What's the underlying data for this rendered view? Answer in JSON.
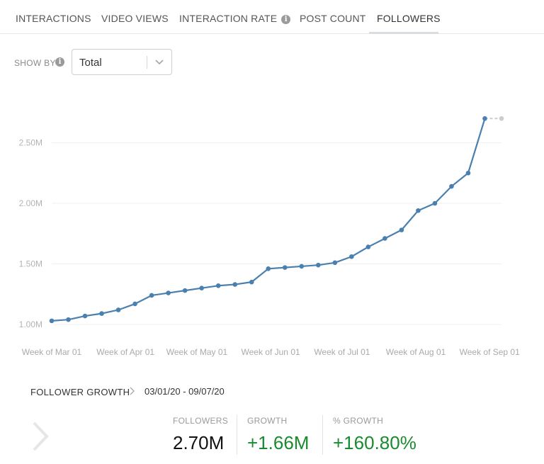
{
  "tabs": [
    {
      "label": "INTERACTIONS"
    },
    {
      "label": "VIDEO VIEWS"
    },
    {
      "label": "INTERACTION RATE",
      "has_info": true
    },
    {
      "label": "POST COUNT"
    },
    {
      "label": "FOLLOWERS",
      "active": true
    }
  ],
  "controls": {
    "show_by_label": "SHOW BY",
    "show_by_value": "Total"
  },
  "chart_data": {
    "type": "line",
    "x_tick_labels": [
      "Week of Mar 01",
      "Week of Apr 01",
      "Week of May 01",
      "Week of Jun 01",
      "Week of Jul 01",
      "Week of Aug 01",
      "Week of Sep 01"
    ],
    "y_tick_labels": [
      "1.00M",
      "1.50M",
      "2.00M",
      "2.50M"
    ],
    "y_ticks": [
      1000000,
      1500000,
      2000000,
      2500000
    ],
    "ylim": [
      1000000,
      2800000
    ],
    "grid": true,
    "line_color": "#4a80b0",
    "projection_color": "#cccccc",
    "series": [
      {
        "x": [
          "03/01/20",
          "03/08/20",
          "03/15/20",
          "03/22/20",
          "03/29/20",
          "04/05/20",
          "04/12/20",
          "04/19/20",
          "04/26/20",
          "05/03/20",
          "05/10/20",
          "05/17/20",
          "05/24/20",
          "05/31/20",
          "06/07/20",
          "06/14/20",
          "06/21/20",
          "06/28/20",
          "07/05/20",
          "07/12/20",
          "07/19/20",
          "07/26/20",
          "08/02/20",
          "08/09/20",
          "08/16/20",
          "08/23/20",
          "08/30/20"
        ],
        "values": [
          1030000,
          1040000,
          1070000,
          1090000,
          1120000,
          1170000,
          1240000,
          1260000,
          1280000,
          1300000,
          1320000,
          1330000,
          1350000,
          1460000,
          1470000,
          1480000,
          1490000,
          1510000,
          1560000,
          1640000,
          1710000,
          1780000,
          1940000,
          2000000,
          2140000,
          2250000,
          2700000
        ]
      }
    ],
    "projection": {
      "x": [
        "08/30/20",
        "09/06/20"
      ],
      "values": [
        2700000,
        2700000
      ]
    }
  },
  "summary": {
    "title": "FOLLOWER GROWTH",
    "date_range": "03/01/20 - 09/07/20",
    "metrics": [
      {
        "label": "FOLLOWERS",
        "value": "2.70M",
        "color": "#111111"
      },
      {
        "label": "GROWTH",
        "value": "+1.66M",
        "color": "#1a8a2e"
      },
      {
        "label": "% GROWTH",
        "value": "+160.80%",
        "color": "#1a8a2e"
      }
    ]
  }
}
